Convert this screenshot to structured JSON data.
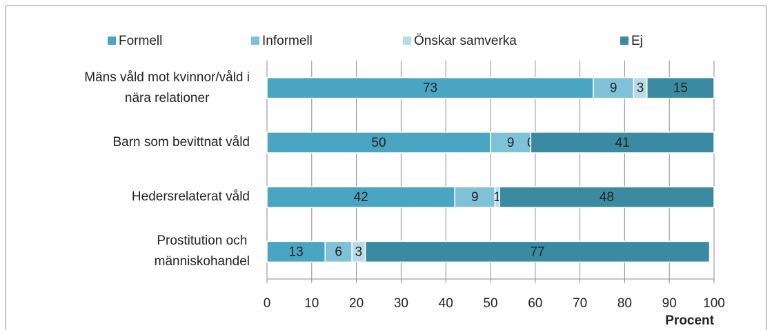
{
  "chart_data": {
    "type": "stacked_barh",
    "categories": [
      [
        "Mäns våld mot kvinnor/våld i",
        "nära relationer"
      ],
      [
        "Barn som bevittnat våld"
      ],
      [
        "Hedersrelaterat våld"
      ],
      [
        "Prostitution och",
        "människohandel"
      ]
    ],
    "series": [
      {
        "name": "Formell",
        "color": "#4aa5c2",
        "values": [
          73,
          50,
          42,
          13
        ]
      },
      {
        "name": "Informell",
        "color": "#7fc1d7",
        "values": [
          9,
          9,
          9,
          6
        ]
      },
      {
        "name": "Önskar samverka",
        "color": "#b9dbe8",
        "values": [
          3,
          0,
          1,
          3
        ]
      },
      {
        "name": "Ej",
        "color": "#3a8ba1",
        "values": [
          15,
          41,
          48,
          77
        ]
      }
    ],
    "xlim": [
      0,
      100
    ],
    "xticks": [
      0,
      10,
      20,
      30,
      40,
      50,
      60,
      70,
      80,
      90,
      100
    ],
    "xlabel": "Procent",
    "grid": true,
    "legend": "top"
  }
}
